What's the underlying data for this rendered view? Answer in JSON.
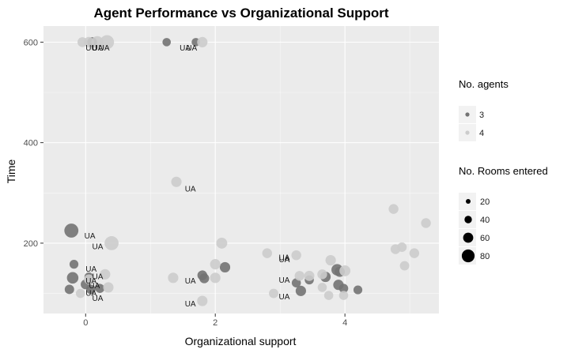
{
  "chart_data": {
    "type": "scatter",
    "title": "Agent Performance vs Organizational Support",
    "xlabel": "Organizational support",
    "ylabel": "Time",
    "xlim": [
      -0.65,
      5.45
    ],
    "ylim": [
      60,
      632
    ],
    "x_ticks": [
      0,
      2,
      4
    ],
    "x_tick_labels": [
      "0",
      "2",
      "4"
    ],
    "y_ticks": [
      200,
      400,
      600
    ],
    "y_tick_labels": [
      "200",
      "400",
      "600"
    ],
    "grid": true,
    "background": "#ebebeb",
    "gridline_color": "#ffffff",
    "legend_position": "right",
    "legends": [
      {
        "title": "No. agents",
        "encoding": "color",
        "entries": [
          {
            "label": "3",
            "color": "#737373"
          },
          {
            "label": "4",
            "color": "#cccccc"
          }
        ]
      },
      {
        "title": "No. Rooms entered",
        "encoding": "size",
        "entries": [
          {
            "label": "20",
            "value": 20
          },
          {
            "label": "40",
            "value": 40
          },
          {
            "label": "60",
            "value": 60
          },
          {
            "label": "80",
            "value": 80
          }
        ]
      }
    ],
    "series": [
      {
        "name": "3",
        "color": "#737373",
        "points": [
          {
            "x": 1.25,
            "y": 600,
            "size": 15
          },
          {
            "x": 1.7,
            "y": 600,
            "size": 15
          },
          {
            "x": 0.1,
            "y": 600,
            "size": 25
          },
          {
            "x": -0.22,
            "y": 225,
            "size": 70
          },
          {
            "x": -0.18,
            "y": 158,
            "size": 18
          },
          {
            "x": -0.2,
            "y": 131,
            "size": 40
          },
          {
            "x": -0.25,
            "y": 108,
            "size": 22
          },
          {
            "x": 0.05,
            "y": 133,
            "size": 18
          },
          {
            "x": 0.0,
            "y": 118,
            "size": 25
          },
          {
            "x": 0.08,
            "y": 108,
            "size": 22
          },
          {
            "x": 0.22,
            "y": 110,
            "size": 20
          },
          {
            "x": 1.8,
            "y": 136,
            "size": 25
          },
          {
            "x": 1.83,
            "y": 130,
            "size": 25
          },
          {
            "x": 2.15,
            "y": 152,
            "size": 30
          },
          {
            "x": 3.25,
            "y": 121,
            "size": 20
          },
          {
            "x": 3.32,
            "y": 105,
            "size": 30
          },
          {
            "x": 3.45,
            "y": 127,
            "size": 20
          },
          {
            "x": 3.7,
            "y": 133,
            "size": 30
          },
          {
            "x": 3.88,
            "y": 147,
            "size": 40
          },
          {
            "x": 3.92,
            "y": 143,
            "size": 28
          },
          {
            "x": 3.9,
            "y": 117,
            "size": 30
          },
          {
            "x": 3.98,
            "y": 110,
            "size": 20
          },
          {
            "x": 4.2,
            "y": 107,
            "size": 18
          }
        ]
      },
      {
        "name": "4",
        "color": "#cccccc",
        "points": [
          {
            "x": -0.05,
            "y": 600,
            "size": 25
          },
          {
            "x": 0.05,
            "y": 600,
            "size": 30
          },
          {
            "x": 0.18,
            "y": 600,
            "size": 45
          },
          {
            "x": 0.33,
            "y": 600,
            "size": 70
          },
          {
            "x": 1.8,
            "y": 600,
            "size": 30
          },
          {
            "x": 1.4,
            "y": 322,
            "size": 30
          },
          {
            "x": 0.4,
            "y": 200,
            "size": 70
          },
          {
            "x": 0.05,
            "y": 128,
            "size": 25
          },
          {
            "x": 0.3,
            "y": 138,
            "size": 30
          },
          {
            "x": 0.35,
            "y": 112,
            "size": 30
          },
          {
            "x": -0.08,
            "y": 100,
            "size": 20
          },
          {
            "x": 1.35,
            "y": 131,
            "size": 30
          },
          {
            "x": 1.8,
            "y": 85,
            "size": 30
          },
          {
            "x": 2.0,
            "y": 131,
            "size": 30
          },
          {
            "x": 2.0,
            "y": 158,
            "size": 30
          },
          {
            "x": 2.1,
            "y": 200,
            "size": 35
          },
          {
            "x": 2.8,
            "y": 180,
            "size": 25
          },
          {
            "x": 2.9,
            "y": 100,
            "size": 22
          },
          {
            "x": 3.25,
            "y": 176,
            "size": 25
          },
          {
            "x": 3.3,
            "y": 135,
            "size": 25
          },
          {
            "x": 3.45,
            "y": 135,
            "size": 28
          },
          {
            "x": 3.65,
            "y": 112,
            "size": 20
          },
          {
            "x": 3.65,
            "y": 138,
            "size": 25
          },
          {
            "x": 3.75,
            "y": 96,
            "size": 20
          },
          {
            "x": 3.78,
            "y": 166,
            "size": 30
          },
          {
            "x": 4.0,
            "y": 145,
            "size": 35
          },
          {
            "x": 3.98,
            "y": 96,
            "size": 20
          },
          {
            "x": 4.75,
            "y": 268,
            "size": 25
          },
          {
            "x": 4.78,
            "y": 188,
            "size": 25
          },
          {
            "x": 4.88,
            "y": 192,
            "size": 22
          },
          {
            "x": 4.92,
            "y": 155,
            "size": 22
          },
          {
            "x": 5.07,
            "y": 180,
            "size": 25
          },
          {
            "x": 5.25,
            "y": 240,
            "size": 25
          }
        ]
      }
    ],
    "annotations": [
      {
        "text": "UU",
        "x": 0.0,
        "y": 583
      },
      {
        "text": "UA",
        "x": 0.1,
        "y": 583
      },
      {
        "text": "UA",
        "x": 0.2,
        "y": 583
      },
      {
        "text": "UA",
        "x": 1.45,
        "y": 583
      },
      {
        "text": "UA",
        "x": 1.55,
        "y": 583
      },
      {
        "text": "UA",
        "x": 1.53,
        "y": 303
      },
      {
        "text": "UA",
        "x": -0.02,
        "y": 209
      },
      {
        "text": "UA",
        "x": 0.1,
        "y": 188
      },
      {
        "text": "UA",
        "x": 0.0,
        "y": 143
      },
      {
        "text": "UA",
        "x": 0.1,
        "y": 128
      },
      {
        "text": "UA",
        "x": 0.0,
        "y": 120
      },
      {
        "text": "UA",
        "x": 0.05,
        "y": 110
      },
      {
        "text": "UA",
        "x": 0.0,
        "y": 95
      },
      {
        "text": "UA",
        "x": 0.1,
        "y": 85
      },
      {
        "text": "UA",
        "x": 1.53,
        "y": 120
      },
      {
        "text": "UA",
        "x": 1.53,
        "y": 74
      },
      {
        "text": "UA",
        "x": 2.98,
        "y": 166
      },
      {
        "text": "UA",
        "x": 2.98,
        "y": 162
      },
      {
        "text": "UA",
        "x": 2.98,
        "y": 121
      },
      {
        "text": "UA",
        "x": 2.98,
        "y": 88
      }
    ]
  }
}
